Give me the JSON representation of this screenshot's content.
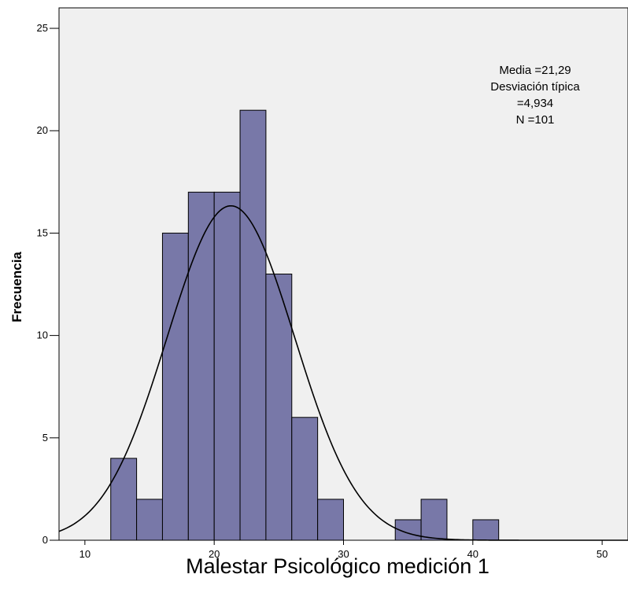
{
  "chart_data": {
    "type": "bar",
    "subtype": "histogram",
    "xlabel": "Malestar Psicológico medición 1",
    "ylabel": "Frecuencia",
    "xlim": [
      8,
      52
    ],
    "ylim": [
      0,
      26
    ],
    "x_ticks": [
      10,
      20,
      30,
      40,
      50
    ],
    "y_ticks": [
      0,
      5,
      10,
      15,
      20,
      25
    ],
    "bins": [
      {
        "start": 12,
        "end": 14,
        "count": 4
      },
      {
        "start": 14,
        "end": 16,
        "count": 2
      },
      {
        "start": 16,
        "end": 18,
        "count": 15
      },
      {
        "start": 18,
        "end": 20,
        "count": 17
      },
      {
        "start": 20,
        "end": 22,
        "count": 17
      },
      {
        "start": 22,
        "end": 24,
        "count": 21
      },
      {
        "start": 24,
        "end": 26,
        "count": 13
      },
      {
        "start": 26,
        "end": 28,
        "count": 6
      },
      {
        "start": 28,
        "end": 30,
        "count": 2
      },
      {
        "start": 34,
        "end": 36,
        "count": 1
      },
      {
        "start": 36,
        "end": 38,
        "count": 2
      },
      {
        "start": 40,
        "end": 42,
        "count": 1
      }
    ],
    "normal_curve": {
      "mean": 21.29,
      "sd": 4.934,
      "n": 101,
      "bin_width": 2
    },
    "stats_lines": [
      "Media =21,29",
      "Desviación típica",
      "=4,934",
      "N =101"
    ],
    "colors": {
      "bar_fill": "#7878a8",
      "bar_stroke": "#000000",
      "plot_background": "#f0f0f0",
      "curve": "#000000"
    },
    "grid": false,
    "legend": "none"
  }
}
